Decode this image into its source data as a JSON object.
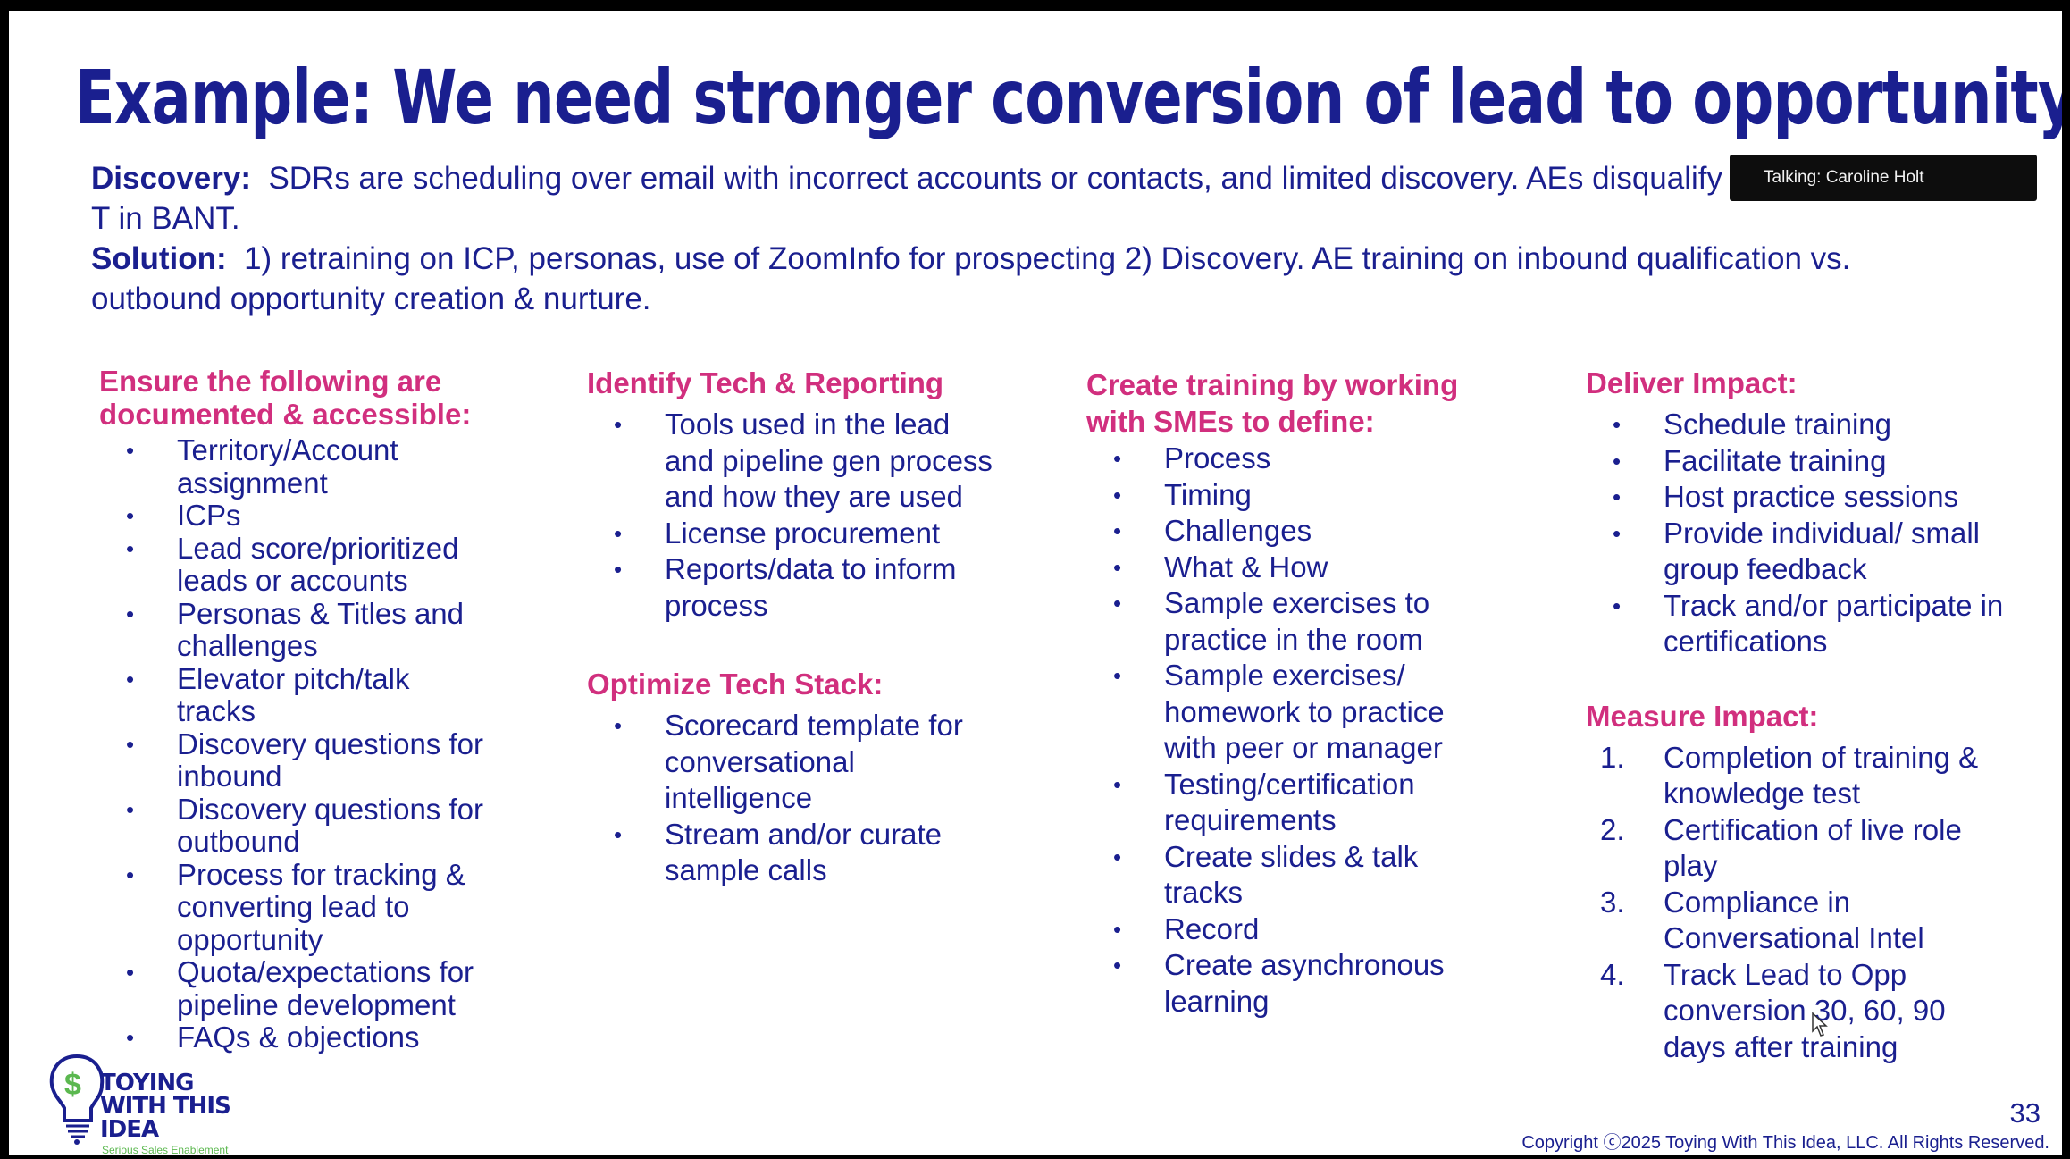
{
  "slide": {
    "title": "Example:  We need stronger conversion of lead to opportunity",
    "discovery_label": "Discovery:",
    "discovery_text": "SDRs are scheduling over email with incorrect accounts or contacts, and limited discovery.  AEs disqualify without B and T in BANT.",
    "solution_label": "Solution:",
    "solution_text": "1) retraining on ICP, personas, use of ZoomInfo for prospecting 2) Discovery.  AE training on inbound qualification vs. outbound opportunity creation & nurture."
  },
  "col1": {
    "heading": "Ensure the following are documented & accessible:",
    "items": [
      "Territory/Account assignment",
      "ICPs",
      "Lead score/prioritized leads or accounts",
      "Personas & Titles and challenges",
      "Elevator pitch/talk tracks",
      "Discovery questions for inbound",
      "Discovery questions for outbound",
      "Process for tracking & converting lead to opportunity",
      "Quota/expectations for pipeline development",
      "FAQs & objections"
    ]
  },
  "col2": {
    "heading": "Identify Tech & Reporting",
    "items": [
      "Tools used in the lead and pipeline gen process and how they are used",
      "License procurement",
      "Reports/data to inform process"
    ],
    "heading2": "Optimize Tech Stack:",
    "items2": [
      "Scorecard template for conversational intelligence",
      "Stream and/or curate sample calls"
    ]
  },
  "col3": {
    "heading": "Create training by working with SMEs to define:",
    "items": [
      "Process",
      "Timing",
      "Challenges",
      "What & How",
      "Sample exercises to practice in the room",
      "Sample exercises/ homework to practice with peer or manager",
      "Testing/certification requirements",
      "Create slides & talk tracks",
      "Record",
      "Create asynchronous learning"
    ]
  },
  "col4": {
    "heading": "Deliver Impact:",
    "items": [
      "Schedule training",
      "Facilitate training",
      "Host practice sessions",
      "Provide individual/ small group feedback",
      "Track and/or participate in certifications"
    ],
    "heading2": "Measure Impact:",
    "numbered": [
      {
        "n": "1.",
        "text": "Completion of training & knowledge test"
      },
      {
        "n": "2.",
        "text": "Certification of live role play"
      },
      {
        "n": "3.",
        "text": "Compliance in Conversational Intel"
      },
      {
        "n": "4.",
        "text": "Track Lead to Opp conversion 30, 60, 90 days after training"
      }
    ]
  },
  "talking_badge": "Talking: Caroline Holt",
  "page_number": "33",
  "copyright": "Copyright ⓒ2025 Toying With This Idea, LLC. All Rights Reserved.",
  "logo": {
    "line1": "TOYING",
    "line2": "WITH THIS",
    "line3": "IDEA",
    "tagline": "Serious Sales Enablement",
    "symbol": "$"
  },
  "colors": {
    "navy": "#1a1f8f",
    "pink": "#d12f7e",
    "green": "#5bb84f"
  }
}
